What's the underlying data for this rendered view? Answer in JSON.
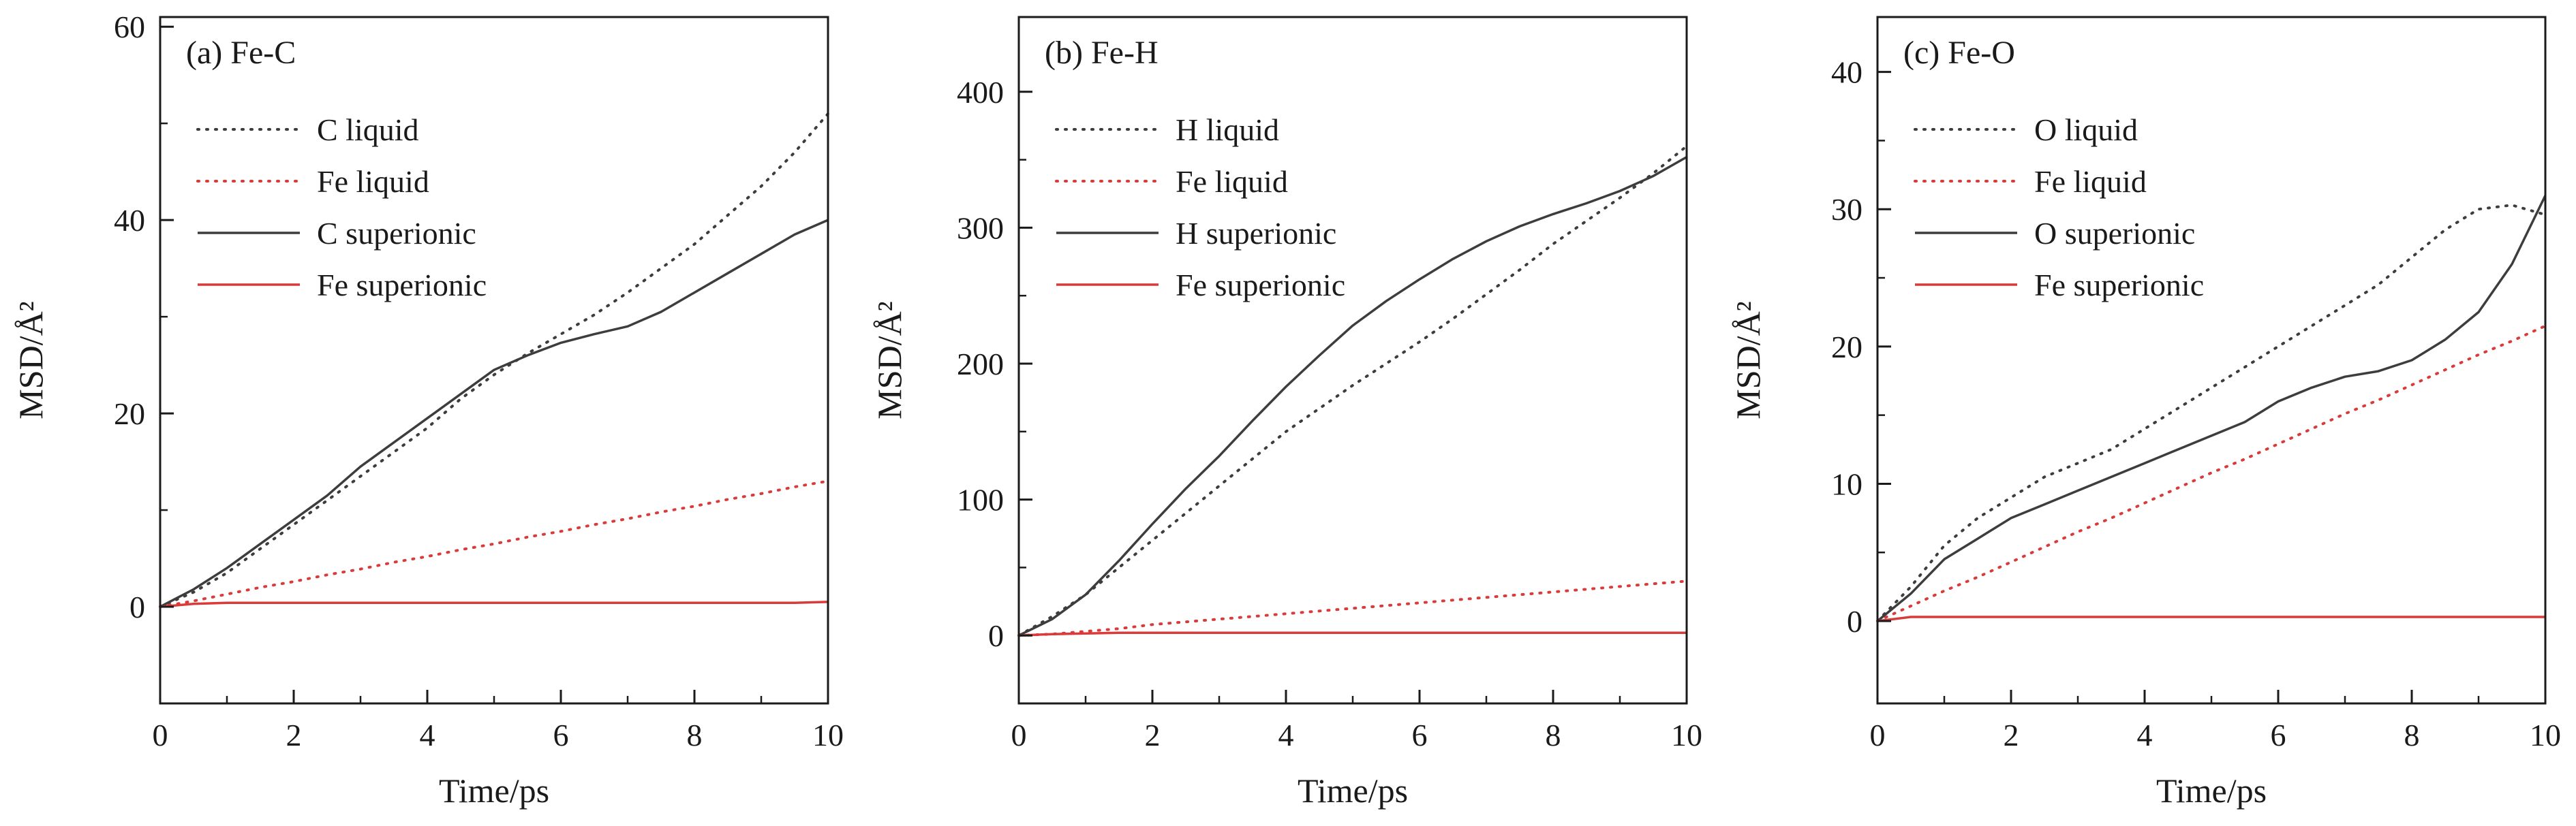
{
  "figure": {
    "background": "#ffffff",
    "axis_color": "#1a1a1a",
    "black_series_color": "#3d3d3d",
    "red_series_color": "#d93a3a"
  },
  "chart_data": [
    {
      "type": "line",
      "panel_label": "(a) Fe-C",
      "xlabel": "Time/ps",
      "ylabel": "MSD/Å²",
      "xlim": [
        0,
        10
      ],
      "ylim": [
        -10,
        61
      ],
      "xticks": [
        0,
        2,
        4,
        6,
        8,
        10
      ],
      "yticks": [
        0,
        20,
        40,
        60
      ],
      "x_step": 0.5,
      "legend_position": "upper-left",
      "grid": false,
      "series": [
        {
          "name": "C liquid",
          "style": "dotted",
          "color": "#3d3d3d",
          "values": [
            0,
            1.5,
            3.5,
            6,
            8.5,
            11,
            13.5,
            16,
            18.5,
            21.5,
            24,
            26.2,
            28.2,
            30.2,
            32.5,
            35,
            37.5,
            40.5,
            43.5,
            47,
            51
          ]
        },
        {
          "name": "Fe liquid",
          "style": "dotted",
          "color": "#d93a3a",
          "values": [
            0,
            0.6,
            1.3,
            2,
            2.6,
            3.3,
            3.9,
            4.6,
            5.2,
            5.9,
            6.5,
            7.2,
            7.8,
            8.5,
            9.1,
            9.8,
            10.4,
            11.1,
            11.7,
            12.4,
            13
          ]
        },
        {
          "name": "C superionic",
          "style": "solid",
          "color": "#3d3d3d",
          "values": [
            0,
            1.8,
            4,
            6.5,
            9,
            11.5,
            14.5,
            17,
            19.5,
            22,
            24.5,
            26,
            27.3,
            28.2,
            29,
            30.5,
            32.5,
            34.5,
            36.5,
            38.5,
            40
          ]
        },
        {
          "name": "Fe superionic",
          "style": "solid",
          "color": "#d93a3a",
          "values": [
            0,
            0.3,
            0.4,
            0.4,
            0.4,
            0.4,
            0.4,
            0.4,
            0.4,
            0.4,
            0.4,
            0.4,
            0.4,
            0.4,
            0.4,
            0.4,
            0.4,
            0.4,
            0.4,
            0.4,
            0.5
          ]
        }
      ]
    },
    {
      "type": "line",
      "panel_label": "(b) Fe-H",
      "xlabel": "Time/ps",
      "ylabel": "MSD/Å²",
      "xlim": [
        0,
        10
      ],
      "ylim": [
        -50,
        455
      ],
      "xticks": [
        0,
        2,
        4,
        6,
        8,
        10
      ],
      "yticks": [
        0,
        100,
        200,
        300,
        400
      ],
      "x_step": 0.5,
      "legend_position": "upper-left",
      "grid": false,
      "series": [
        {
          "name": "H liquid",
          "style": "dotted",
          "color": "#3d3d3d",
          "values": [
            0,
            14,
            30,
            50,
            70,
            90,
            110,
            130,
            150,
            167,
            184,
            200,
            216,
            233,
            251,
            269,
            288,
            305,
            322,
            340,
            360
          ]
        },
        {
          "name": "Fe liquid",
          "style": "dotted",
          "color": "#d93a3a",
          "values": [
            0,
            1,
            3,
            5,
            8,
            10,
            12,
            14,
            16,
            18,
            20,
            22,
            24,
            26,
            28,
            30,
            32,
            34,
            36,
            38,
            40
          ]
        },
        {
          "name": "H superionic",
          "style": "solid",
          "color": "#3d3d3d",
          "values": [
            0,
            12,
            30,
            55,
            82,
            108,
            132,
            158,
            183,
            206,
            228,
            246,
            262,
            277,
            290,
            301,
            310,
            318,
            327,
            338,
            352
          ]
        },
        {
          "name": "Fe superionic",
          "style": "solid",
          "color": "#d93a3a",
          "values": [
            0,
            1,
            1.5,
            2,
            2,
            2,
            2,
            2,
            2,
            2,
            2,
            2,
            2,
            2,
            2,
            2,
            2,
            2,
            2,
            2,
            2
          ]
        }
      ]
    },
    {
      "type": "line",
      "panel_label": "(c) Fe-O",
      "xlabel": "Time/ps",
      "ylabel": "MSD/Å²",
      "xlim": [
        0,
        10
      ],
      "ylim": [
        -6,
        44
      ],
      "xticks": [
        0,
        2,
        4,
        6,
        8,
        10
      ],
      "yticks": [
        0,
        10,
        20,
        30,
        40
      ],
      "x_step": 0.5,
      "legend_position": "upper-left",
      "grid": false,
      "series": [
        {
          "name": "O liquid",
          "style": "dotted",
          "color": "#3d3d3d",
          "values": [
            0,
            2.5,
            5.5,
            7.5,
            9,
            10.5,
            11.5,
            12.5,
            14,
            15.5,
            17,
            18.5,
            20,
            21.5,
            23,
            24.5,
            26.5,
            28.5,
            30,
            30.3,
            29.6
          ]
        },
        {
          "name": "Fe liquid",
          "style": "dotted",
          "color": "#d93a3a",
          "values": [
            0,
            1.1,
            2.2,
            3.2,
            4.3,
            5.4,
            6.5,
            7.5,
            8.6,
            9.7,
            10.8,
            11.8,
            12.9,
            14,
            15.1,
            16.1,
            17.2,
            18.3,
            19.4,
            20.4,
            21.5
          ]
        },
        {
          "name": "O superionic",
          "style": "solid",
          "color": "#3d3d3d",
          "values": [
            0,
            2,
            4.5,
            6,
            7.5,
            8.5,
            9.5,
            10.5,
            11.5,
            12.5,
            13.5,
            14.5,
            16,
            17,
            17.8,
            18.2,
            19,
            20.5,
            22.5,
            26,
            31
          ]
        },
        {
          "name": "Fe superionic",
          "style": "solid",
          "color": "#d93a3a",
          "values": [
            0,
            0.3,
            0.3,
            0.3,
            0.3,
            0.3,
            0.3,
            0.3,
            0.3,
            0.3,
            0.3,
            0.3,
            0.3,
            0.3,
            0.3,
            0.3,
            0.3,
            0.3,
            0.3,
            0.3,
            0.3
          ]
        }
      ]
    }
  ]
}
